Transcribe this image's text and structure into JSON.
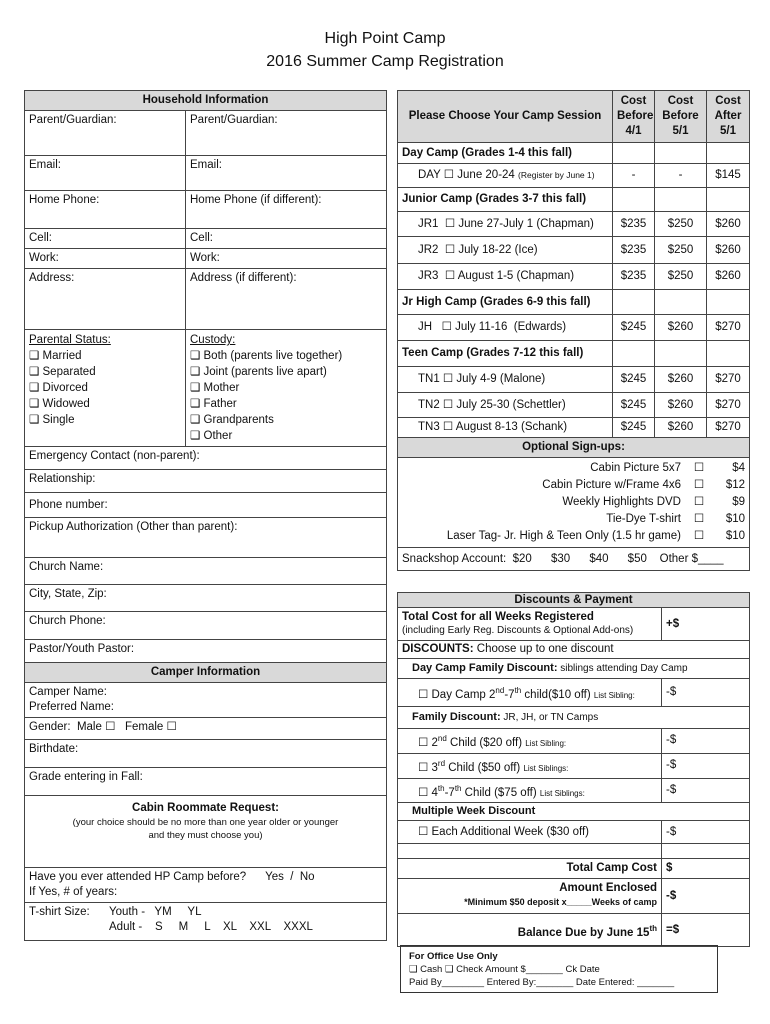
{
  "title": "High Point Camp",
  "subtitle": "2016 Summer Camp Registration",
  "household": {
    "header": "Household Information",
    "rows": [
      [
        "Parent/Guardian:",
        "Parent/Guardian:"
      ],
      [
        "Email:",
        "Email:"
      ],
      [
        "Home Phone:",
        "Home Phone (if different):"
      ],
      [
        "Cell:",
        "Cell:"
      ],
      [
        "Work:",
        "Work:"
      ],
      [
        "Address:",
        "Address (if different):"
      ]
    ],
    "parental_status": {
      "label": "Parental Status:",
      "options": [
        "Married",
        "Separated",
        "Divorced",
        "Widowed",
        "Single"
      ]
    },
    "custody": {
      "label": "Custody:",
      "options": [
        "Both (parents live together)",
        "Joint (parents live apart)",
        "Mother",
        "Father",
        "Grandparents",
        "Other"
      ]
    },
    "fields": [
      "Emergency Contact (non-parent):",
      "Relationship:",
      "Phone number:",
      "Pickup Authorization (Other than parent):",
      "Church Name:",
      "City, State, Zip:",
      "Church Phone:",
      "Pastor/Youth Pastor:"
    ]
  },
  "camper": {
    "header": "Camper Information",
    "camper_name": "Camper Name:",
    "preferred_name": "Preferred Name:",
    "gender": "Gender:  Male ☐   Female ☐",
    "birthdate": "Birthdate:",
    "grade": "Grade entering in Fall:",
    "roommate_title": "Cabin Roommate Request:",
    "roommate_note": "(your choice should be no more than one year older or younger and they must choose you)",
    "attended": "Have you ever attended HP Camp before?      Yes  /  No",
    "years": "If Yes, # of years:",
    "tshirt_label": "T-shirt Size:",
    "youth": "Youth -   YM     YL",
    "adult": "Adult -    S     M     L    XL    XXL    XXXL"
  },
  "sessions": {
    "header": "Please Choose Your Camp Session",
    "cols": [
      "Cost Before 4/1",
      "Cost Before 5/1",
      "Cost After 5/1"
    ],
    "groups": [
      {
        "name": "Day Camp (Grades 1-4 this fall)",
        "items": [
          {
            "label": "DAY ☐ June 20-24",
            "note": "(Register by June 1)",
            "prices": [
              "-",
              "-",
              "$145"
            ]
          }
        ]
      },
      {
        "name": "Junior Camp (Grades 3-7 this fall)",
        "items": [
          {
            "label": "JR1  ☐ June 27-July 1 (Chapman)",
            "prices": [
              "$235",
              "$250",
              "$260"
            ]
          },
          {
            "label": "JR2  ☐ July 18-22 (Ice)",
            "prices": [
              "$235",
              "$250",
              "$260"
            ]
          },
          {
            "label": "JR3  ☐ August 1-5 (Chapman)",
            "prices": [
              "$235",
              "$250",
              "$260"
            ]
          }
        ]
      },
      {
        "name": "Jr High Camp (Grades 6-9 this fall)",
        "items": [
          {
            "label": "JH   ☐ July 11-16  (Edwards)",
            "prices": [
              "$245",
              "$260",
              "$270"
            ]
          }
        ]
      },
      {
        "name": "Teen Camp (Grades 7-12 this fall)",
        "items": [
          {
            "label": "TN1 ☐ July 4-9 (Malone)",
            "prices": [
              "$245",
              "$260",
              "$270"
            ]
          },
          {
            "label": "TN2 ☐ July 25-30 (Schettler)",
            "prices": [
              "$245",
              "$260",
              "$270"
            ]
          },
          {
            "label": "TN3 ☐ August 8-13 (Schank)",
            "prices": [
              "$245",
              "$260",
              "$270"
            ]
          }
        ]
      }
    ]
  },
  "optional": {
    "header": "Optional Sign-ups:",
    "items": [
      {
        "label": "Cabin Picture 5x7",
        "price": "$4"
      },
      {
        "label": "Cabin Picture w/Frame 4x6",
        "price": "$12"
      },
      {
        "label": "Weekly Highlights DVD",
        "price": "$9"
      },
      {
        "label": "Tie-Dye T-shirt",
        "price": "$10"
      },
      {
        "label": "Laser Tag- Jr. High & Teen Only (1.5 hr game)",
        "price": "$10"
      }
    ],
    "checkbox": "☐",
    "snackshop": "Snackshop Account:  $20      $30      $40      $50    Other $____"
  },
  "payment": {
    "header": "Discounts & Payment",
    "total_weeks": "Total Cost for all Weeks Registered",
    "total_weeks_note": "(including Early Reg. Discounts & Optional Add-ons)",
    "plus": "+$",
    "discounts_bold": "DISCOUNTS:",
    "discounts_text": " Choose up to one discount",
    "daycamp_bold": "Day Camp Family Discount:",
    "daycamp_text": " siblings attending Day Camp",
    "daycamp_item": "☐ Day Camp 2nd-7th child($10 off)",
    "list_sibling": "List Sibling:",
    "list_siblings": "List Siblings:",
    "minus": "-$",
    "family_bold": "Family Discount:",
    "family_text": " JR, JH, or TN Camps",
    "second": "☐ 2nd Child ($20 off)",
    "third": "☐ 3rd Child ($50 off)",
    "fourth": "☐ 4th-7th Child ($75 off)",
    "multi": "Multiple Week Discount",
    "each": "☐ Each Additional Week ($30 off)",
    "total_camp": "Total Camp Cost",
    "dollar": "$",
    "enclosed": "Amount Enclosed",
    "enclosed_note": "*Minimum $50 deposit x_____Weeks of camp",
    "balance": "Balance Due by June 15th",
    "equals": "=$"
  },
  "office": {
    "title": "For Office Use Only",
    "line1": "❑ Cash ❑ Check Amount $_______ Ck Date",
    "line2": "Paid By________  Entered By:_______ Date Entered: _______"
  }
}
